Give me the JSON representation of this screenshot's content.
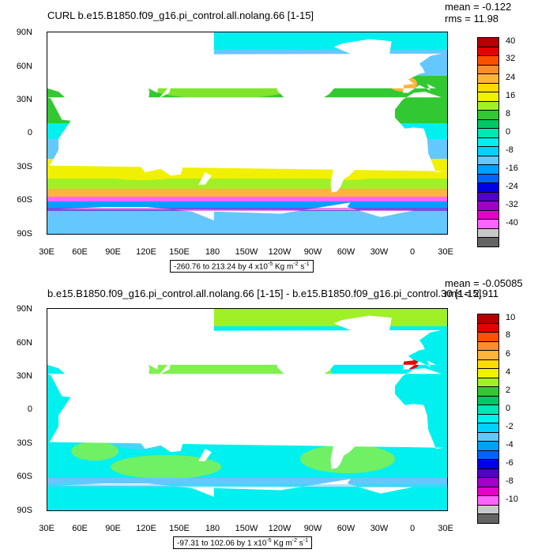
{
  "panels": [
    {
      "title": "CURL b.e15.B1850.f09_g16.pi_control.all.nolang.66 [1-15]",
      "mean": "mean = -0.122",
      "rms": "rms = 11.98",
      "range_text": "-260.76 to 213.24 by 4 x10",
      "range_exp": "-5",
      "range_units": " Kg m",
      "range_units_exp": "-2",
      "range_s": " s",
      "range_s_exp": "-1",
      "lat_labels": [
        "90N",
        "60N",
        "30N",
        "0",
        "30S",
        "60S",
        "90S"
      ],
      "lon_labels": [
        "30E",
        "60E",
        "90E",
        "120E",
        "150E",
        "180",
        "150W",
        "120W",
        "90W",
        "60W",
        "30W",
        "0",
        "30E"
      ],
      "colorbar_labels": [
        "40",
        "32",
        "24",
        "16",
        "8",
        "0",
        "-8",
        "-16",
        "-24",
        "-32",
        "-40"
      ]
    },
    {
      "title": "b.e15.B1850.f09_g16.pi_control.all.nolang.66 [1-15] - b.e15.B1850.f09_g16.pi_control.30 [1-15]",
      "mean": "mean = -0.05085",
      "rms": "rms = 2.911",
      "range_text": "-97.31 to 102.06 by 1 x10",
      "range_exp": "-5",
      "range_units": " Kg m",
      "range_units_exp": "-2",
      "range_s": " s",
      "range_s_exp": "-1",
      "lat_labels": [
        "90N",
        "60N",
        "30N",
        "0",
        "30S",
        "60S",
        "90S"
      ],
      "lon_labels": [
        "30E",
        "60E",
        "90E",
        "120E",
        "150E",
        "180",
        "150W",
        "120W",
        "90W",
        "60W",
        "30W",
        "0",
        "30E"
      ],
      "colorbar_labels": [
        "10",
        "8",
        "6",
        "4",
        "2",
        "0",
        "-2",
        "-4",
        "-6",
        "-8",
        "-10"
      ]
    }
  ],
  "colorbar_colors": [
    "#b40000",
    "#e60000",
    "#ff5000",
    "#ff8c28",
    "#ffb43c",
    "#ffdc00",
    "#f0f000",
    "#a0f028",
    "#32c832",
    "#00c864",
    "#00e6b4",
    "#00f0f0",
    "#00d2ff",
    "#64c8ff",
    "#00a0ff",
    "#0064ff",
    "#0000e6",
    "#5000c8",
    "#a000c8",
    "#e600c8",
    "#ff64ff",
    "#c8c8c8",
    "#646464"
  ],
  "chart_data": [
    {
      "type": "heatmap",
      "title": "CURL b.e15.B1850.f09_g16.pi_control.all.nolang.66 [1-15]",
      "xlabel": "",
      "ylabel": "",
      "xlim": [
        "30E",
        "30E"
      ],
      "ylim": [
        "90S",
        "90N"
      ],
      "levels": [
        -40,
        -36,
        -32,
        -28,
        -24,
        -20,
        -16,
        -12,
        -8,
        -4,
        0,
        4,
        8,
        12,
        16,
        20,
        24,
        28,
        32,
        36,
        40
      ],
      "mean": -0.122,
      "rms": 11.98,
      "min": -260.76,
      "max": 213.24,
      "interval": 4
    },
    {
      "type": "heatmap",
      "title": "b.e15.B1850.f09_g16.pi_control.all.nolang.66 [1-15] - b.e15.B1850.f09_g16.pi_control.30 [1-15]",
      "xlabel": "",
      "ylabel": "",
      "xlim": [
        "30E",
        "30E"
      ],
      "ylim": [
        "90S",
        "90N"
      ],
      "levels": [
        -10,
        -9,
        -8,
        -7,
        -6,
        -5,
        -4,
        -3,
        -2,
        -1,
        0,
        1,
        2,
        3,
        4,
        5,
        6,
        7,
        8,
        9,
        10
      ],
      "mean": -0.05085,
      "rms": 2.911,
      "min": -97.31,
      "max": 102.06,
      "interval": 1
    }
  ]
}
